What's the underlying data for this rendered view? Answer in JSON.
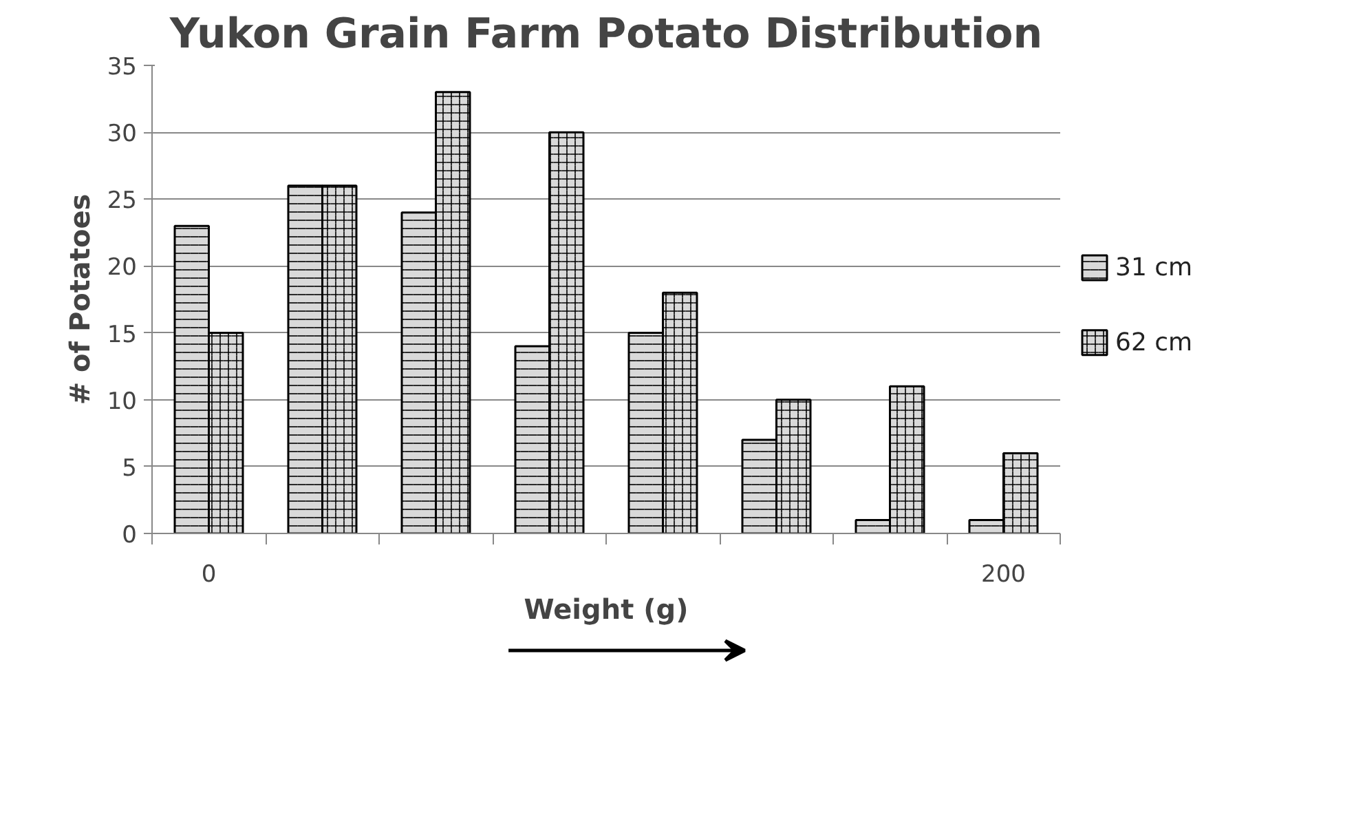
{
  "chart_data": {
    "type": "bar",
    "title": "Yukon Grain Farm Potato Distribution",
    "xlabel": "Weight (g)",
    "ylabel": "# of Potatoes",
    "categories": [
      "0",
      null,
      null,
      null,
      null,
      null,
      null,
      "200"
    ],
    "series": [
      {
        "name": "31 cm",
        "color": "#d9d9d9",
        "values": [
          23,
          26,
          24,
          14,
          15,
          7,
          1,
          1
        ]
      },
      {
        "name": "62 cm",
        "color": "#d9d9d9",
        "values": [
          15,
          26,
          33,
          30,
          18,
          10,
          11,
          6
        ]
      }
    ],
    "ylim": [
      0,
      35
    ],
    "yticks": [
      0,
      5,
      10,
      15,
      20,
      25,
      30,
      35
    ],
    "grid": "y",
    "legend": "right"
  }
}
